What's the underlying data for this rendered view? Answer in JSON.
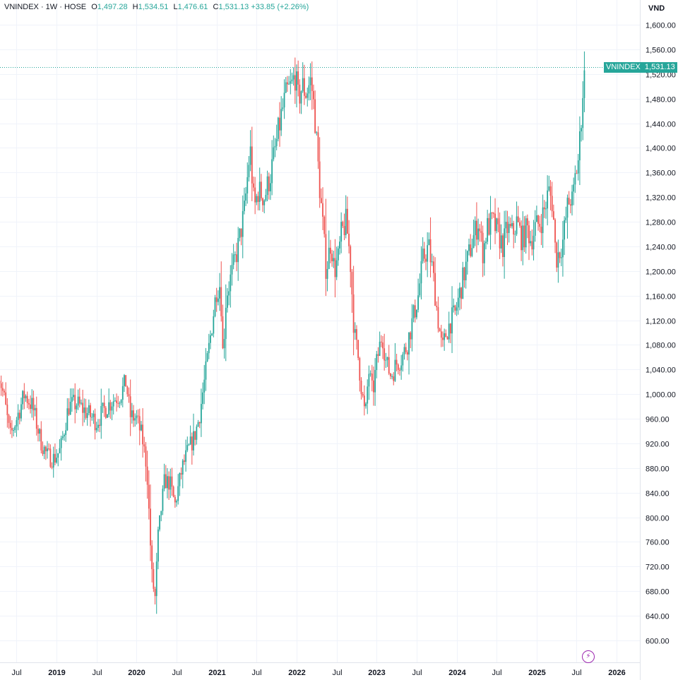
{
  "legend": {
    "symbol": "VNINDEX · 1W · HOSE",
    "open_label": "O",
    "open": "1,497.28",
    "high_label": "H",
    "high": "1,534.51",
    "low_label": "L",
    "low": "1,476.61",
    "close_label": "C",
    "close": "1,531.13",
    "change": "+33.85 (+2.26%)"
  },
  "price_axis": {
    "currency": "VND"
  },
  "last_price": {
    "symbol": "VNINDEX",
    "value": "1,531.13"
  },
  "toolbar": {
    "flash_icon": "lightning-icon"
  },
  "colors": {
    "up": "#26a69a",
    "down": "#ef5350",
    "grid": "#f0f3fa"
  },
  "chart_data": {
    "type": "candlestick",
    "interval": "1W",
    "y_ticks": [
      600,
      640,
      680,
      720,
      760,
      800,
      840,
      880,
      920,
      960,
      1000,
      1040,
      1080,
      1120,
      1160,
      1200,
      1240,
      1280,
      1320,
      1360,
      1400,
      1440,
      1480,
      1520,
      1560,
      1600
    ],
    "y_tick_labels": [
      "600.00",
      "640.00",
      "680.00",
      "720.00",
      "760.00",
      "800.00",
      "840.00",
      "880.00",
      "920.00",
      "960.00",
      "1,000.00",
      "1,040.00",
      "1,080.00",
      "1,120.00",
      "1,160.00",
      "1,200.00",
      "1,240.00",
      "1,280.00",
      "1,320.00",
      "1,360.00",
      "1,400.00",
      "1,440.00",
      "1,480.00",
      "1,520.00",
      "1,560.00",
      "1,600.00"
    ],
    "x_ticks": [
      {
        "label": "Jul",
        "t": 2018.5,
        "major": false
      },
      {
        "label": "2019",
        "t": 2019.0,
        "major": true
      },
      {
        "label": "Jul",
        "t": 2019.5,
        "major": false
      },
      {
        "label": "2020",
        "t": 2020.0,
        "major": true
      },
      {
        "label": "Jul",
        "t": 2020.5,
        "major": false
      },
      {
        "label": "2021",
        "t": 2021.0,
        "major": true
      },
      {
        "label": "Jul",
        "t": 2021.5,
        "major": false
      },
      {
        "label": "2022",
        "t": 2022.0,
        "major": true
      },
      {
        "label": "Jul",
        "t": 2022.5,
        "major": false
      },
      {
        "label": "2023",
        "t": 2023.0,
        "major": true
      },
      {
        "label": "Jul",
        "t": 2023.5,
        "major": false
      },
      {
        "label": "2024",
        "t": 2024.0,
        "major": true
      },
      {
        "label": "Jul",
        "t": 2024.5,
        "major": false
      },
      {
        "label": "2025",
        "t": 2025.0,
        "major": true
      },
      {
        "label": "Jul",
        "t": 2025.5,
        "major": false
      },
      {
        "label": "2026",
        "t": 2026.0,
        "major": true
      }
    ],
    "close_path": [
      [
        2018.27,
        1040
      ],
      [
        2018.35,
        990
      ],
      [
        2018.42,
        930
      ],
      [
        2018.5,
        960
      ],
      [
        2018.6,
        1000
      ],
      [
        2018.7,
        980
      ],
      [
        2018.8,
        925
      ],
      [
        2018.88,
        900
      ],
      [
        2018.97,
        895
      ],
      [
        2019.05,
        910
      ],
      [
        2019.15,
        980
      ],
      [
        2019.25,
        985
      ],
      [
        2019.38,
        970
      ],
      [
        2019.5,
        955
      ],
      [
        2019.6,
        975
      ],
      [
        2019.7,
        990
      ],
      [
        2019.8,
        1000
      ],
      [
        2019.87,
        1020
      ],
      [
        2019.92,
        965
      ],
      [
        2020.0,
        960
      ],
      [
        2020.07,
        930
      ],
      [
        2020.13,
        880
      ],
      [
        2020.19,
        710
      ],
      [
        2020.23,
        666
      ],
      [
        2020.27,
        770
      ],
      [
        2020.35,
        860
      ],
      [
        2020.42,
        855
      ],
      [
        2020.48,
        820
      ],
      [
        2020.57,
        880
      ],
      [
        2020.65,
        910
      ],
      [
        2020.72,
        930
      ],
      [
        2020.78,
        960
      ],
      [
        2020.87,
        1040
      ],
      [
        2020.95,
        1120
      ],
      [
        2021.0,
        1170
      ],
      [
        2021.05,
        1180
      ],
      [
        2021.08,
        1060
      ],
      [
        2021.12,
        1160
      ],
      [
        2021.2,
        1200
      ],
      [
        2021.27,
        1240
      ],
      [
        2021.35,
        1300
      ],
      [
        2021.42,
        1400
      ],
      [
        2021.47,
        1300
      ],
      [
        2021.52,
        1330
      ],
      [
        2021.6,
        1320
      ],
      [
        2021.68,
        1360
      ],
      [
        2021.75,
        1410
      ],
      [
        2021.82,
        1460
      ],
      [
        2021.88,
        1490
      ],
      [
        2021.94,
        1500
      ],
      [
        2021.98,
        1520
      ],
      [
        2022.02,
        1480
      ],
      [
        2022.07,
        1500
      ],
      [
        2022.12,
        1490
      ],
      [
        2022.18,
        1510
      ],
      [
        2022.23,
        1450
      ],
      [
        2022.28,
        1350
      ],
      [
        2022.33,
        1270
      ],
      [
        2022.37,
        1200
      ],
      [
        2022.43,
        1250
      ],
      [
        2022.47,
        1200
      ],
      [
        2022.52,
        1220
      ],
      [
        2022.56,
        1260
      ],
      [
        2022.62,
        1280
      ],
      [
        2022.67,
        1220
      ],
      [
        2022.72,
        1100
      ],
      [
        2022.77,
        1060
      ],
      [
        2022.82,
        1000
      ],
      [
        2022.86,
        960
      ],
      [
        2022.9,
        1040
      ],
      [
        2022.95,
        1000
      ],
      [
        2023.0,
        1050
      ],
      [
        2023.07,
        1100
      ],
      [
        2023.12,
        1050
      ],
      [
        2023.18,
        1030
      ],
      [
        2023.25,
        1050
      ],
      [
        2023.32,
        1060
      ],
      [
        2023.38,
        1080
      ],
      [
        2023.45,
        1120
      ],
      [
        2023.52,
        1160
      ],
      [
        2023.58,
        1220
      ],
      [
        2023.65,
        1240
      ],
      [
        2023.7,
        1200
      ],
      [
        2023.76,
        1130
      ],
      [
        2023.82,
        1070
      ],
      [
        2023.87,
        1100
      ],
      [
        2023.93,
        1120
      ],
      [
        2023.98,
        1130
      ],
      [
        2024.05,
        1170
      ],
      [
        2024.12,
        1210
      ],
      [
        2024.2,
        1250
      ],
      [
        2024.27,
        1280
      ],
      [
        2024.33,
        1230
      ],
      [
        2024.38,
        1270
      ],
      [
        2024.45,
        1280
      ],
      [
        2024.52,
        1260
      ],
      [
        2024.58,
        1240
      ],
      [
        2024.63,
        1270
      ],
      [
        2024.7,
        1260
      ],
      [
        2024.75,
        1280
      ],
      [
        2024.82,
        1250
      ],
      [
        2024.88,
        1270
      ],
      [
        2024.93,
        1250
      ],
      [
        2024.98,
        1270
      ],
      [
        2025.05,
        1280
      ],
      [
        2025.1,
        1300
      ],
      [
        2025.15,
        1330
      ],
      [
        2025.2,
        1310
      ],
      [
        2025.24,
        1220
      ],
      [
        2025.28,
        1230
      ],
      [
        2025.33,
        1250
      ],
      [
        2025.38,
        1300
      ],
      [
        2025.42,
        1320
      ],
      [
        2025.45,
        1310
      ],
      [
        2025.48,
        1350
      ],
      [
        2025.52,
        1380
      ],
      [
        2025.55,
        1430
      ],
      [
        2025.57,
        1480
      ],
      [
        2025.6,
        1531.13
      ]
    ]
  }
}
